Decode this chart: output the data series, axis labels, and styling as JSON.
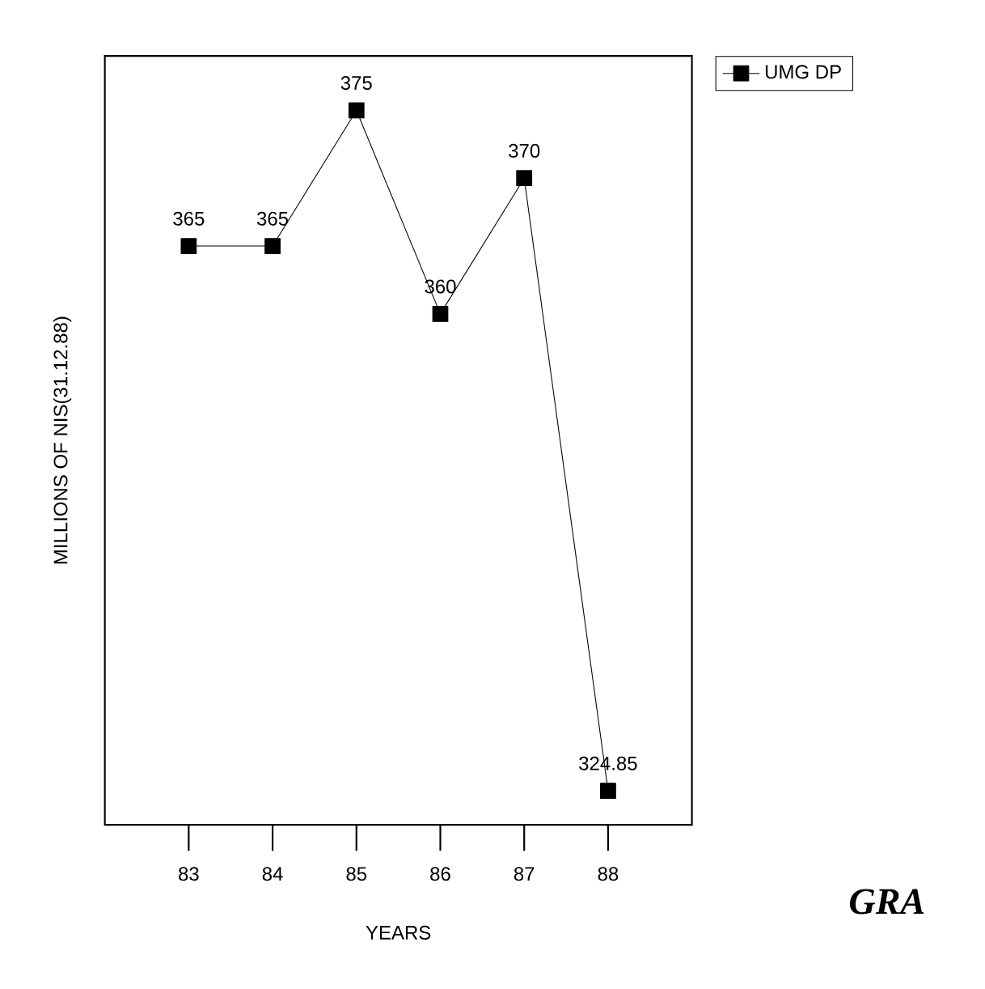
{
  "chart_data": {
    "type": "line",
    "xlabel": "YEARS",
    "ylabel": "MILLIONS OF NIS(31.12.88)",
    "categories": [
      "83",
      "84",
      "85",
      "86",
      "87",
      "88"
    ],
    "series": [
      {
        "name": "UMG DP",
        "color": "#000000",
        "values": [
          365,
          365,
          375,
          360,
          370,
          324.85
        ]
      }
    ],
    "marker": "square",
    "line_style": "solid",
    "data_labels": true,
    "legend": "top right",
    "grid": false,
    "annotations": [
      "GRA"
    ]
  }
}
